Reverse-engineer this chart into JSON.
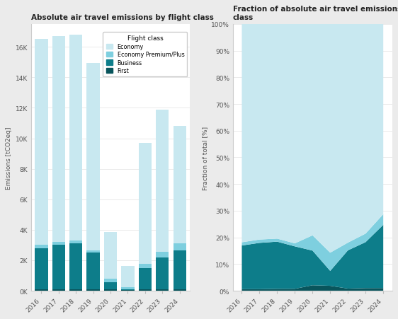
{
  "years": [
    "2016",
    "2017",
    "2018",
    "2019",
    "2020",
    "2021",
    "2022",
    "2023",
    "2024"
  ],
  "economy": [
    13500,
    13500,
    13500,
    12300,
    3050,
    1380,
    7950,
    9350,
    7700
  ],
  "econ_premium": [
    200,
    210,
    190,
    170,
    220,
    110,
    280,
    380,
    430
  ],
  "business": [
    2700,
    2900,
    2970,
    2380,
    500,
    90,
    1390,
    2050,
    2560
  ],
  "first": [
    100,
    100,
    120,
    110,
    80,
    30,
    80,
    120,
    110
  ],
  "color_economy": "#c8e8f0",
  "color_econ_prem": "#7ecfdf",
  "color_business": "#0d7d8a",
  "color_first": "#09555c",
  "title_left": "Absolute air travel emissions by flight class",
  "title_right": "Fraction of absolute air travel emissions by flight\nclass",
  "ylabel_left": "Emissions [tCO2eq]",
  "ylabel_right": "Fraction of total [%]",
  "legend_labels": [
    "Economy",
    "Economy Premium/Plus",
    "Business",
    "First"
  ],
  "legend_title": "Flight class",
  "bg_color": "#ebebeb",
  "plot_bg": "#ffffff",
  "yticks_left": [
    0,
    2000,
    4000,
    6000,
    8000,
    10000,
    12000,
    14000,
    16000
  ],
  "ylim_left": [
    0,
    17500
  ],
  "yticks_right": [
    0,
    10,
    20,
    30,
    40,
    50,
    60,
    70,
    80,
    90,
    100
  ],
  "ylim_right": [
    0,
    100
  ]
}
